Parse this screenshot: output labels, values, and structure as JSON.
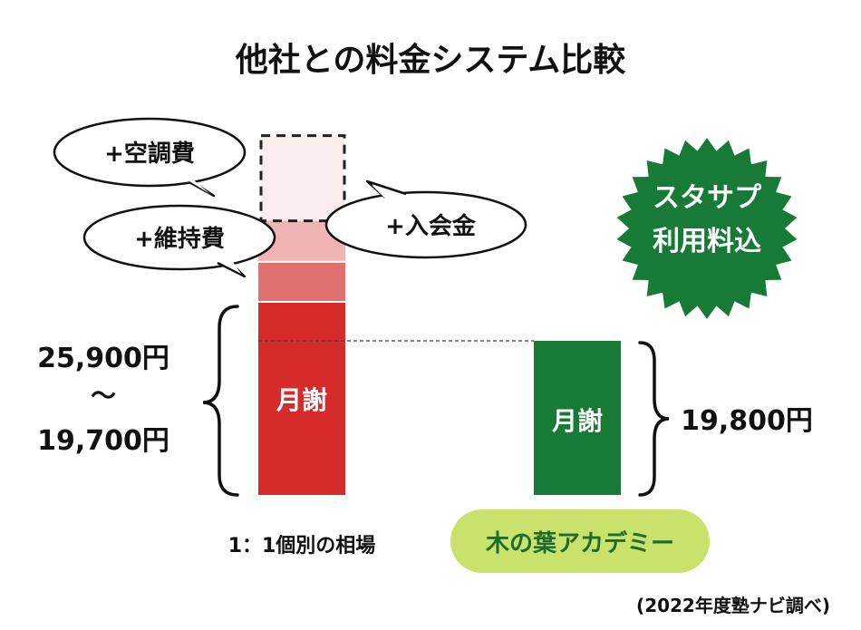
{
  "title": "他社との料金システム比較",
  "source_note": "(2022年度塾ナビ調べ)",
  "badge": {
    "line1": "スタサプ",
    "line2": "利用料込",
    "color": "#177a36"
  },
  "bubbles": {
    "aircon": "+空調費",
    "maintenance": "+維持費",
    "enrollment": "+入会金"
  },
  "competitor": {
    "category_label": "1：1個別の相場",
    "range_high": "25,900円",
    "range_tilde": "～",
    "range_low": "19,700円",
    "bar_label": "月謝"
  },
  "konoha": {
    "category_label": "木の葉アカデミー",
    "price": "19,800円",
    "bar_label": "月謝"
  },
  "colors": {
    "monthly_red": "#d62b2b",
    "maintenance_red": "#e07070",
    "enrollment_pink": "#f0b4b4",
    "aircon_pale": "#faecec",
    "green": "#177a36",
    "pill_green": "#c9e26b"
  },
  "chart_data": {
    "type": "bar",
    "title": "他社との料金システム比較",
    "categories": [
      "1：1個別の相場",
      "木の葉アカデミー"
    ],
    "series": [
      {
        "name": "月謝",
        "values": [
          25900,
          19800
        ]
      },
      {
        "name": "+維持費",
        "values": [
          2000,
          0
        ]
      },
      {
        "name": "+入会金",
        "values": [
          2000,
          0
        ]
      },
      {
        "name": "+空調費",
        "values": [
          5000,
          0
        ]
      }
    ],
    "competitor_range": [
      19700,
      25900
    ],
    "konoha_price": 19800,
    "reference_line": 19700,
    "ylim": [
      0,
      35000
    ],
    "grid": false,
    "legend": "none"
  }
}
